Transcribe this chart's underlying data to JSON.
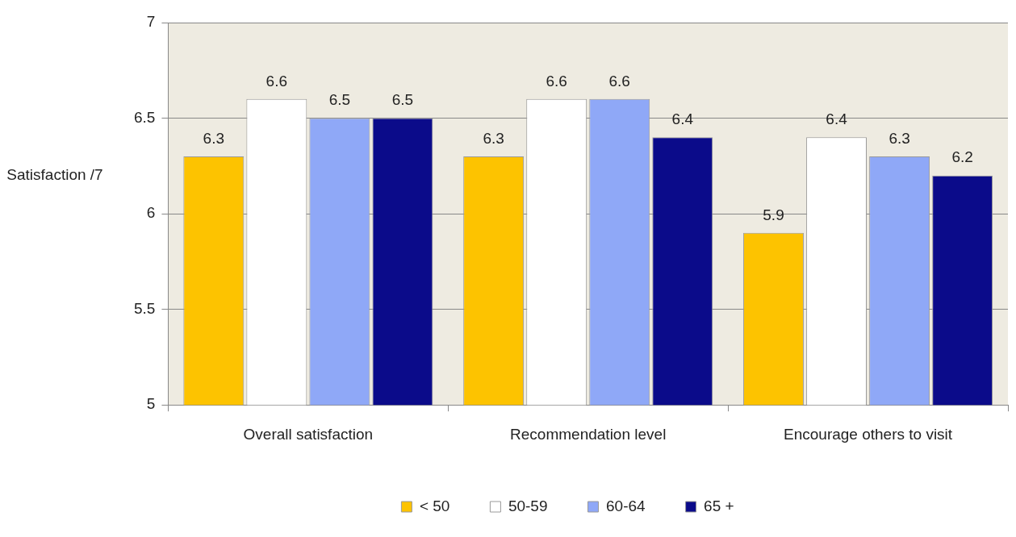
{
  "chart_data": {
    "type": "bar",
    "ylabel": "Satisfaction /7",
    "categories": [
      "Overall satisfaction",
      "Recommendation level",
      "Encourage others to visit"
    ],
    "series": [
      {
        "name": "< 50",
        "color": "#fdc300",
        "values": [
          6.3,
          6.3,
          5.9
        ]
      },
      {
        "name": "50-59",
        "color": "#ffffff",
        "values": [
          6.6,
          6.6,
          6.4
        ]
      },
      {
        "name": "60-64",
        "color": "#8fa8f7",
        "values": [
          6.5,
          6.6,
          6.3
        ]
      },
      {
        "name": "65 +",
        "color": "#0b0b8a",
        "values": [
          6.5,
          6.4,
          6.2
        ]
      }
    ],
    "ylim": [
      5,
      7
    ],
    "yticks": [
      5,
      5.5,
      6,
      6.5,
      7
    ],
    "grid": "y",
    "legend": "bottom",
    "data_labels": true
  }
}
